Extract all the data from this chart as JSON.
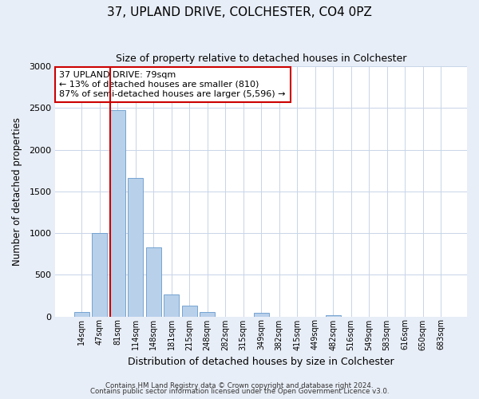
{
  "title": "37, UPLAND DRIVE, COLCHESTER, CO4 0PZ",
  "subtitle": "Size of property relative to detached houses in Colchester",
  "xlabel": "Distribution of detached houses by size in Colchester",
  "ylabel": "Number of detached properties",
  "bar_labels": [
    "14sqm",
    "47sqm",
    "81sqm",
    "114sqm",
    "148sqm",
    "181sqm",
    "215sqm",
    "248sqm",
    "282sqm",
    "315sqm",
    "349sqm",
    "382sqm",
    "415sqm",
    "449sqm",
    "482sqm",
    "516sqm",
    "549sqm",
    "583sqm",
    "616sqm",
    "650sqm",
    "683sqm"
  ],
  "bar_heights": [
    55,
    1000,
    2470,
    1660,
    830,
    265,
    130,
    50,
    0,
    0,
    40,
    0,
    0,
    0,
    15,
    0,
    0,
    0,
    0,
    0,
    0
  ],
  "bar_color": "#b8d0ea",
  "bar_edge_color": "#6699cc",
  "vline_color": "#cc0000",
  "annotation_line1": "37 UPLAND DRIVE: 79sqm",
  "annotation_line2": "← 13% of detached houses are smaller (810)",
  "annotation_line3": "87% of semi-detached houses are larger (5,596) →",
  "annotation_box_color": "#cc0000",
  "ylim": [
    0,
    3000
  ],
  "yticks": [
    0,
    500,
    1000,
    1500,
    2000,
    2500,
    3000
  ],
  "footer1": "Contains HM Land Registry data © Crown copyright and database right 2024.",
  "footer2": "Contains public sector information licensed under the Open Government Licence v3.0.",
  "bg_color": "#e8eef7",
  "plot_bg_color": "#ffffff",
  "grid_color": "#c8d4e8"
}
